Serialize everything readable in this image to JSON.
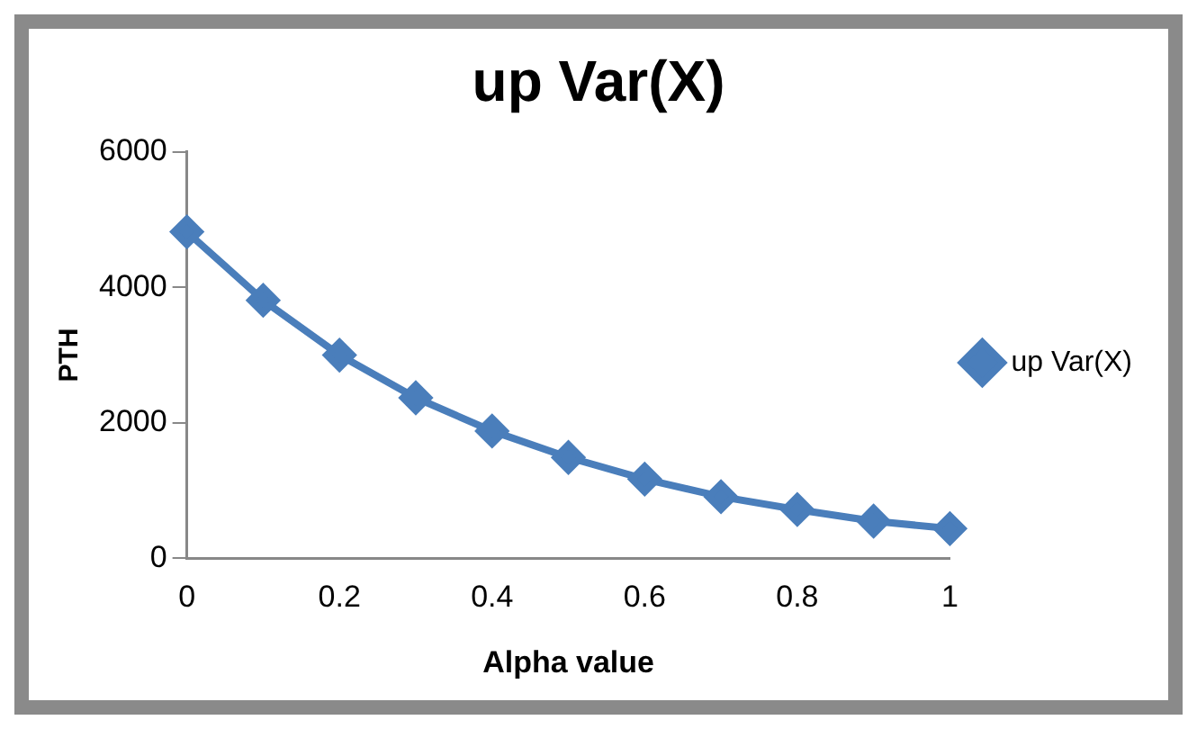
{
  "chart_data": {
    "type": "line",
    "title": "up Var(X)",
    "xlabel": "Alpha value",
    "ylabel": "PTH",
    "categories": [
      "0",
      null,
      "0.2",
      null,
      "0.4",
      null,
      "0.6",
      null,
      "0.8",
      null,
      "1"
    ],
    "series": [
      {
        "name": "up Var(X)",
        "color": "#4a7ebb",
        "values": [
          4820,
          3810,
          3000,
          2370,
          1880,
          1490,
          1170,
          910,
          720,
          550,
          440
        ]
      }
    ],
    "ylim": [
      0,
      6000
    ],
    "yticks": [
      0,
      2000,
      4000,
      6000
    ],
    "grid": false,
    "legend": "right",
    "marker": "diamond",
    "line_style": "solid"
  }
}
